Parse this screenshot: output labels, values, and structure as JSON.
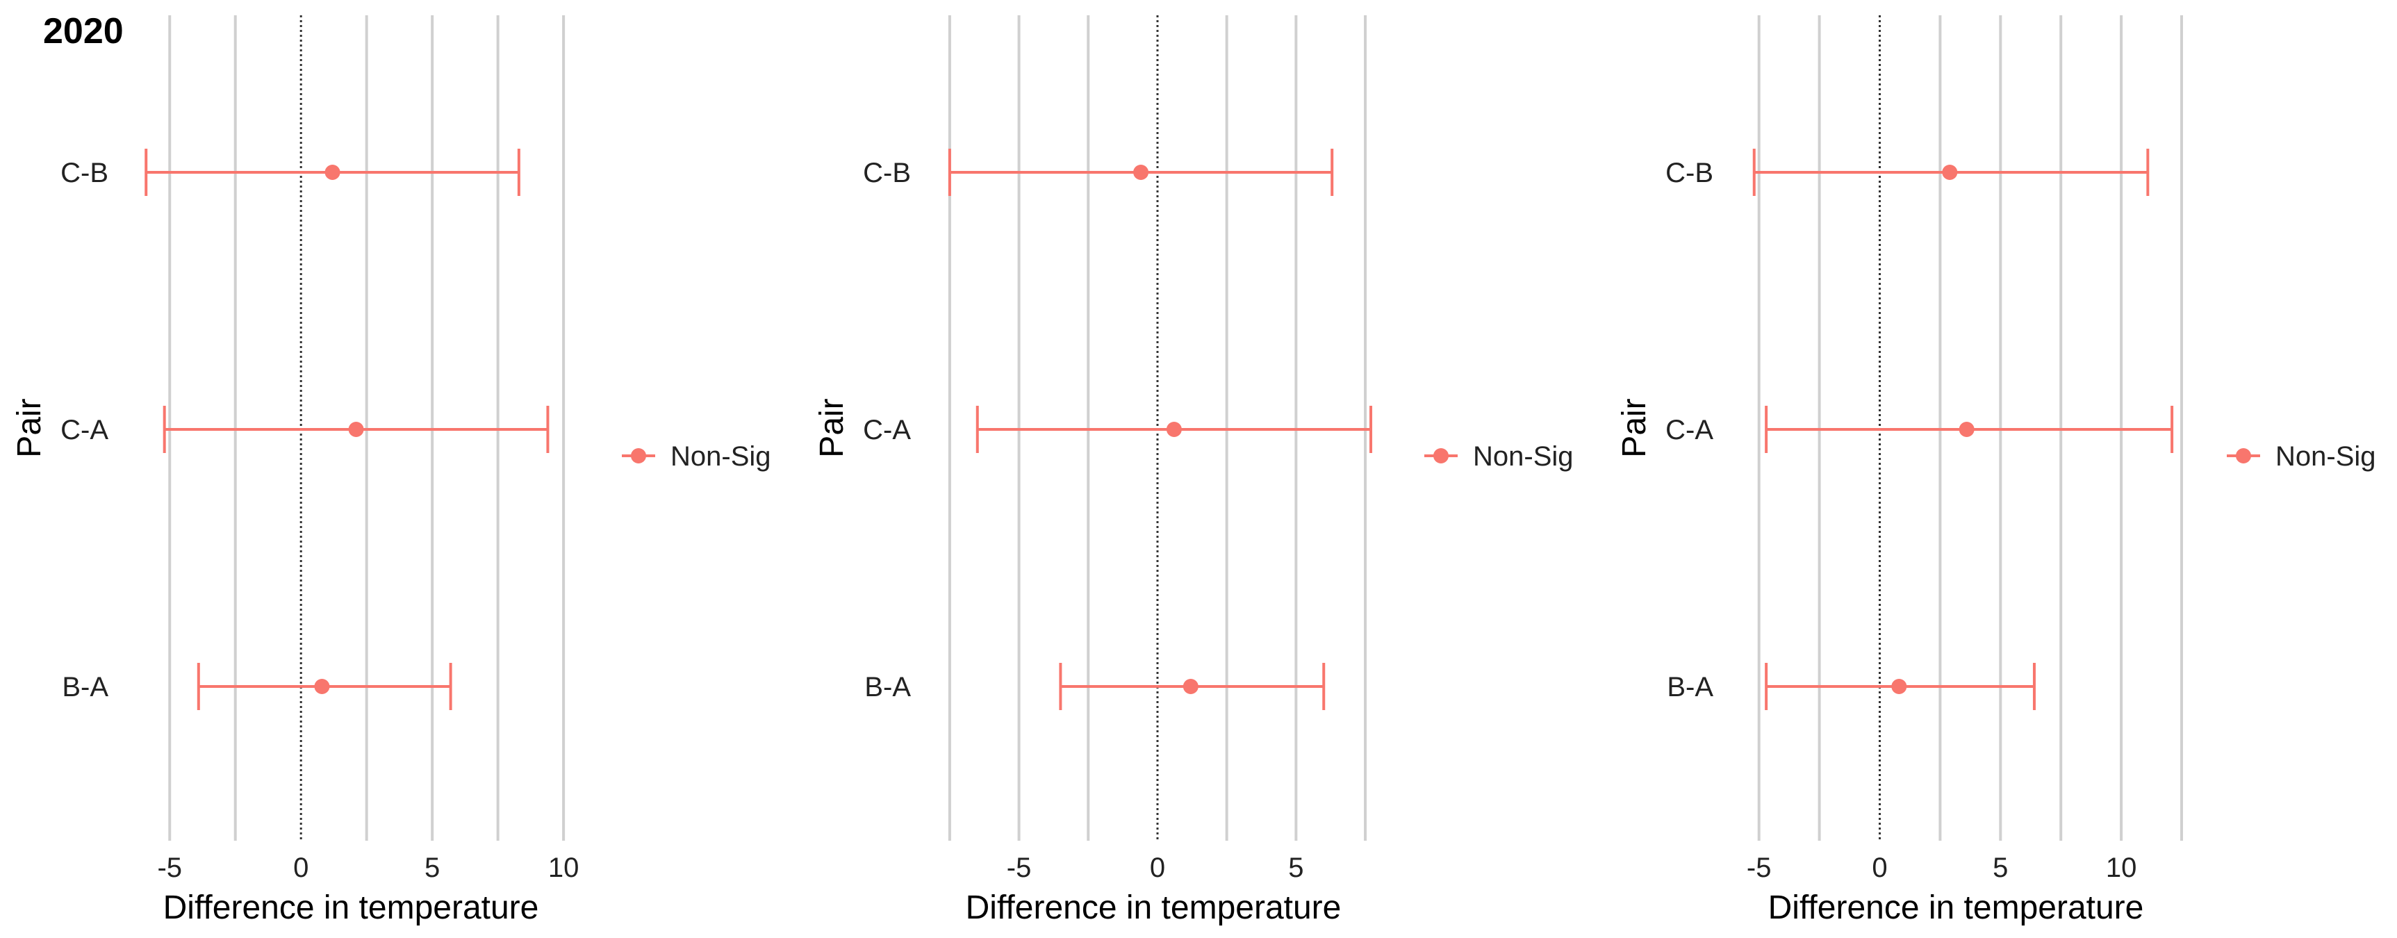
{
  "figure_title": "2020",
  "colors": {
    "series": "#F8766D",
    "grid": "#d0d0d0",
    "zero_line": "#333333",
    "background": "#ffffff"
  },
  "chart_data": [
    {
      "type": "errorbar",
      "xlabel": "Difference in temperature",
      "ylabel": "Pair",
      "xlim": [
        -6.7,
        10.5
      ],
      "x_ticks": [
        -5,
        0,
        5,
        10
      ],
      "x_tick_labels": [
        "-5",
        "0",
        "5",
        "10"
      ],
      "categories": [
        "C-B",
        "C-A",
        "B-A"
      ],
      "reference_line_x": 0,
      "grid": true,
      "legend_position": "right",
      "series": [
        {
          "name": "Non-Sig",
          "points": [
            {
              "pair": "C-B",
              "estimate": 1.2,
              "lower": -5.9,
              "upper": 8.3
            },
            {
              "pair": "C-A",
              "estimate": 2.1,
              "lower": -5.2,
              "upper": 9.4
            },
            {
              "pair": "B-A",
              "estimate": 0.8,
              "lower": -3.9,
              "upper": 5.7
            }
          ]
        }
      ]
    },
    {
      "type": "errorbar",
      "xlabel": "Difference in temperature",
      "ylabel": "Pair",
      "xlim": [
        -8.3,
        8.0
      ],
      "x_ticks": [
        -5,
        0,
        5
      ],
      "x_tick_labels": [
        "-5",
        "0",
        "5"
      ],
      "categories": [
        "C-B",
        "C-A",
        "B-A"
      ],
      "reference_line_x": 0,
      "grid": true,
      "legend_position": "right",
      "series": [
        {
          "name": "Non-Sig",
          "points": [
            {
              "pair": "C-B",
              "estimate": -0.6,
              "lower": -7.5,
              "upper": 6.3
            },
            {
              "pair": "C-A",
              "estimate": 0.6,
              "lower": -6.5,
              "upper": 7.7
            },
            {
              "pair": "B-A",
              "estimate": 1.2,
              "lower": -3.5,
              "upper": 6.0
            }
          ]
        }
      ]
    },
    {
      "type": "errorbar",
      "xlabel": "Difference in temperature",
      "ylabel": "Pair",
      "xlim": [
        -6.2,
        12.5
      ],
      "x_ticks": [
        -5,
        0,
        5,
        10
      ],
      "x_tick_labels": [
        "-5",
        "0",
        "5",
        "10"
      ],
      "categories": [
        "C-B",
        "C-A",
        "B-A"
      ],
      "reference_line_x": 0,
      "grid": true,
      "legend_position": "right",
      "series": [
        {
          "name": "Non-Sig",
          "points": [
            {
              "pair": "C-B",
              "estimate": 2.9,
              "lower": -5.2,
              "upper": 11.1
            },
            {
              "pair": "C-A",
              "estimate": 3.6,
              "lower": -4.7,
              "upper": 12.1
            },
            {
              "pair": "B-A",
              "estimate": 0.8,
              "lower": -4.7,
              "upper": 6.4
            }
          ]
        }
      ]
    }
  ]
}
